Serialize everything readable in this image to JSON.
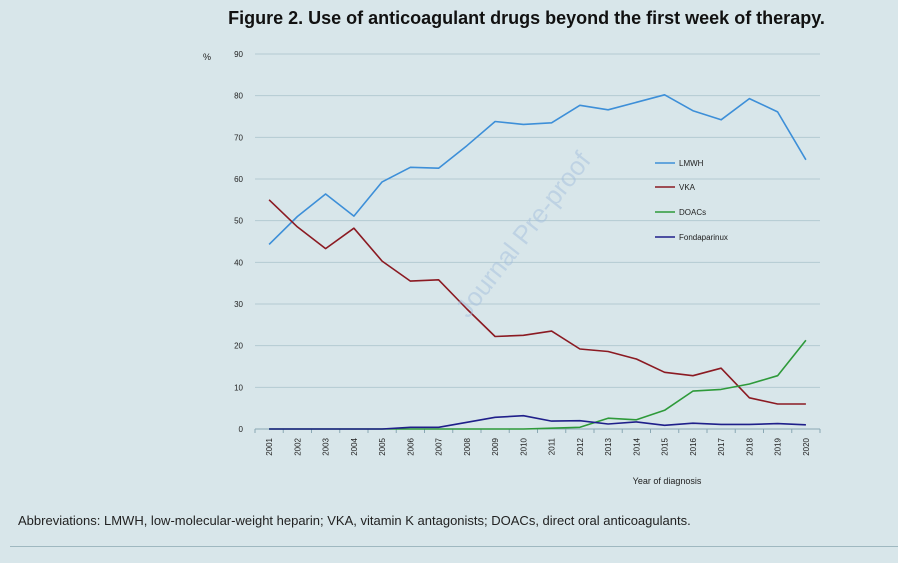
{
  "figure": {
    "title": "Figure 2. Use of anticoagulant drugs beyond the first week of therapy.",
    "abbreviations": "Abbreviations: LMWH, low-molecular-weight heparin; VKA, vitamin K antagonists; DOACs, direct oral anticoagulants.",
    "watermark": "Journal Pre-proof"
  },
  "chart_data": {
    "type": "line",
    "title": "",
    "xlabel": "Year of diagnosis",
    "ylabel": "%",
    "ylim": [
      0,
      90
    ],
    "yticks": [
      0,
      10,
      20,
      30,
      40,
      50,
      60,
      70,
      80,
      90
    ],
    "grid": true,
    "legend_position": "center-right",
    "x": [
      "2001",
      "2002",
      "2003",
      "2004",
      "2005",
      "2006",
      "2007",
      "2008",
      "2009",
      "2010",
      "2011",
      "2012",
      "2013",
      "2014",
      "2015",
      "2016",
      "2017",
      "2018",
      "2019",
      "2020"
    ],
    "series": [
      {
        "name": "LMWH",
        "color": "#3d8fd8",
        "values": [
          44.3,
          51,
          56.4,
          51.1,
          59.3,
          62.8,
          62.6,
          68,
          73.8,
          73.1,
          73.5,
          77.7,
          76.6,
          78.4,
          80.2,
          76.4,
          74.2,
          79.3,
          76.1,
          64.6
        ]
      },
      {
        "name": "VKA",
        "color": "#8b1a22",
        "values": [
          55,
          48.5,
          43.3,
          48.2,
          40.3,
          35.5,
          35.8,
          28.8,
          22.2,
          22.5,
          23.5,
          19.2,
          18.6,
          16.8,
          13.6,
          12.8,
          14.6,
          7.5,
          6,
          6
        ]
      },
      {
        "name": "DOACs",
        "color": "#2e9a3a",
        "values": [
          0,
          0,
          0,
          0,
          0,
          0,
          0,
          0,
          0,
          0,
          0.2,
          0.4,
          2.6,
          2.2,
          4.5,
          9.1,
          9.5,
          10.8,
          12.8,
          21.3
        ]
      },
      {
        "name": "Fondaparinux",
        "color": "#1f1f8a",
        "values": [
          0,
          0,
          0,
          0,
          0,
          0.4,
          0.4,
          1.6,
          2.8,
          3.2,
          1.9,
          2,
          1.2,
          1.7,
          0.9,
          1.4,
          1.1,
          1.1,
          1.3,
          1
        ]
      }
    ]
  }
}
